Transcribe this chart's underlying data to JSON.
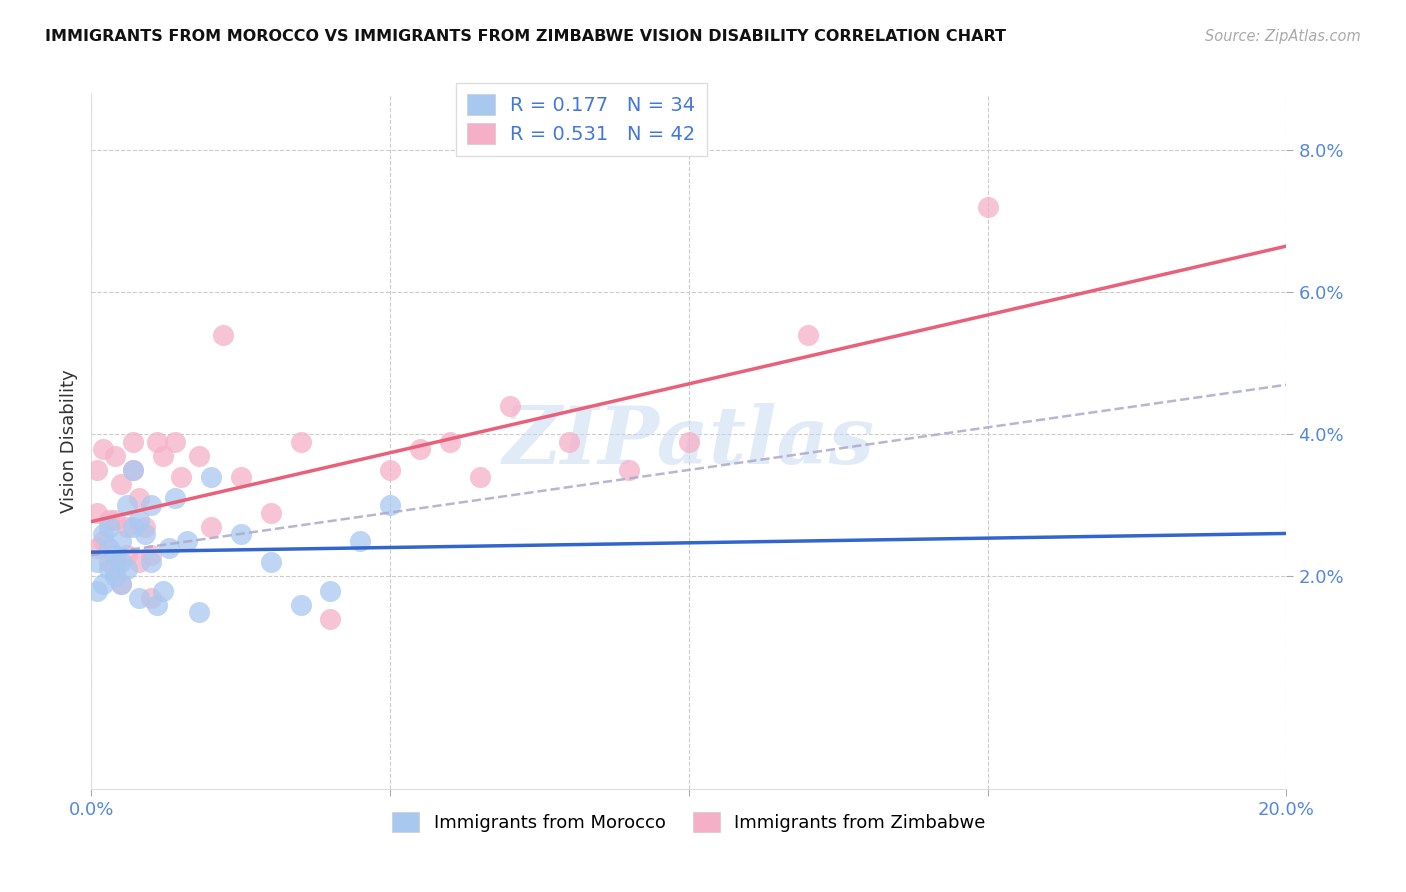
{
  "title": "IMMIGRANTS FROM MOROCCO VS IMMIGRANTS FROM ZIMBABWE VISION DISABILITY CORRELATION CHART",
  "source": "Source: ZipAtlas.com",
  "ylabel_label": "Vision Disability",
  "x_min": 0.0,
  "x_max": 0.2,
  "y_min": -0.01,
  "y_max": 0.088,
  "x_ticks": [
    0.0,
    0.05,
    0.1,
    0.15,
    0.2
  ],
  "y_ticks": [
    0.02,
    0.04,
    0.06,
    0.08
  ],
  "y_tick_labels": [
    "2.0%",
    "4.0%",
    "6.0%",
    "8.0%"
  ],
  "morocco_color": "#a8c8f0",
  "zimbabwe_color": "#f5b0c8",
  "morocco_line_color": "#3366cc",
  "zimbabwe_line_color": "#e8607a",
  "gray_dash_color": "#aaaacc",
  "morocco_R": "0.177",
  "morocco_N": "34",
  "zimbabwe_R": "0.531",
  "zimbabwe_N": "42",
  "stat_color": "#4477dd",
  "watermark": "ZIPatlas",
  "morocco_x": [
    0.001,
    0.001,
    0.002,
    0.002,
    0.003,
    0.003,
    0.003,
    0.004,
    0.004,
    0.005,
    0.005,
    0.005,
    0.006,
    0.006,
    0.007,
    0.007,
    0.008,
    0.008,
    0.009,
    0.01,
    0.01,
    0.011,
    0.012,
    0.013,
    0.014,
    0.016,
    0.018,
    0.02,
    0.025,
    0.03,
    0.035,
    0.04,
    0.045,
    0.05
  ],
  "morocco_y": [
    0.022,
    0.018,
    0.026,
    0.019,
    0.024,
    0.021,
    0.027,
    0.02,
    0.023,
    0.025,
    0.019,
    0.022,
    0.021,
    0.03,
    0.027,
    0.035,
    0.017,
    0.028,
    0.026,
    0.022,
    0.03,
    0.016,
    0.018,
    0.024,
    0.031,
    0.025,
    0.015,
    0.034,
    0.026,
    0.022,
    0.016,
    0.018,
    0.025,
    0.03
  ],
  "zimbabwe_x": [
    0.001,
    0.001,
    0.001,
    0.002,
    0.002,
    0.003,
    0.003,
    0.004,
    0.004,
    0.004,
    0.005,
    0.005,
    0.006,
    0.006,
    0.007,
    0.007,
    0.008,
    0.008,
    0.009,
    0.01,
    0.01,
    0.011,
    0.012,
    0.014,
    0.015,
    0.018,
    0.02,
    0.022,
    0.025,
    0.03,
    0.035,
    0.04,
    0.05,
    0.055,
    0.06,
    0.065,
    0.07,
    0.08,
    0.09,
    0.1,
    0.12,
    0.15
  ],
  "zimbabwe_y": [
    0.024,
    0.029,
    0.035,
    0.025,
    0.038,
    0.022,
    0.028,
    0.021,
    0.028,
    0.037,
    0.019,
    0.033,
    0.023,
    0.027,
    0.035,
    0.039,
    0.022,
    0.031,
    0.027,
    0.017,
    0.023,
    0.039,
    0.037,
    0.039,
    0.034,
    0.037,
    0.027,
    0.054,
    0.034,
    0.029,
    0.039,
    0.014,
    0.035,
    0.038,
    0.039,
    0.034,
    0.044,
    0.039,
    0.035,
    0.039,
    0.054,
    0.072
  ]
}
